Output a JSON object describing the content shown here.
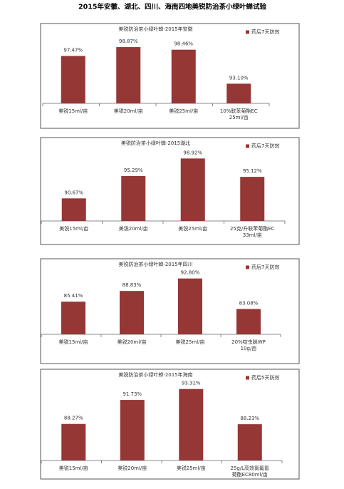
{
  "title": "2015年安徽、湖北、四川、海南四地美锐防治茶小绿叶蝉试验",
  "chart_data": [
    {
      "type": "bar",
      "title": "美锐防治茶小绿叶蝉-2015年安徽",
      "categories": [
        "美锐15ml/亩",
        "美锐20ml/亩",
        "美锐25ml/亩",
        "10%联苯菊酯EC\n25ml/亩"
      ],
      "series": [
        {
          "name": "药后7天防效",
          "color": "#953735",
          "values": [
            97.47,
            98.87,
            98.46,
            93.1
          ],
          "value_labels": [
            "97.47%",
            "98.87%",
            "98.46%",
            "93.10%"
          ]
        }
      ],
      "ylim": [
        90,
        100
      ],
      "legend": "top-right"
    },
    {
      "type": "bar",
      "title": "美锐防治茶小绿叶蝉-2015湖北",
      "categories": [
        "美锐15ml/亩",
        "美锐20ml/亩",
        "美锐25ml/亩",
        "25克/升联苯菊酯EC\n33ml/亩"
      ],
      "series": [
        {
          "name": "药后7天防效",
          "color": "#953735",
          "values": [
            90.67,
            95.29,
            98.92,
            95.12
          ],
          "value_labels": [
            "90.67%",
            "95.29%",
            "98.92%",
            "95.12%"
          ]
        }
      ],
      "ylim": [
        86,
        100
      ],
      "legend": "top-right"
    },
    {
      "type": "bar",
      "title": "美锐防治茶小绿叶蝉-2015年四川",
      "categories": [
        "美锐15ml/亩",
        "美锐20ml/亩",
        "美锐25ml/亩",
        "20%啶虫脒WP\n10g/亩"
      ],
      "series": [
        {
          "name": "药后7天防效",
          "color": "#953735",
          "values": [
            85.41,
            88.83,
            92.8,
            83.08
          ],
          "value_labels": [
            "85.41%",
            "88.83%",
            "92.80%",
            "83.08%"
          ]
        }
      ],
      "ylim": [
        75,
        95
      ],
      "legend": "top-right"
    },
    {
      "type": "bar",
      "title": "美锐防治茶小绿叶蝉-2015年海南",
      "categories": [
        "美锐15ml/亩",
        "美锐20ml/亩",
        "美锐25ml/亩",
        "25g/L高效氯氟氰\n菊酯EC80ml/亩"
      ],
      "series": [
        {
          "name": "药后5天防效",
          "color": "#953735",
          "values": [
            88.27,
            91.73,
            93.31,
            88.23
          ],
          "value_labels": [
            "88.27%",
            "91.73%",
            "93.31%",
            "88.23%"
          ]
        }
      ],
      "ylim": [
        83,
        94
      ],
      "legend": "top-right"
    }
  ]
}
